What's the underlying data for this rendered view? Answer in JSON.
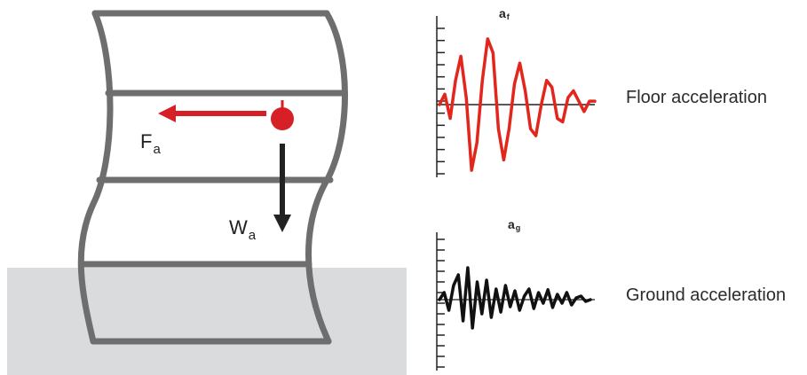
{
  "colors": {
    "frame": "#6e6e6e",
    "ground": "#d9dbdd",
    "accent": "#d71f26",
    "dark": "#222222",
    "background": "#ffffff"
  },
  "building": {
    "force_label": "F",
    "force_label_sub": "a",
    "weight_label": "W",
    "weight_label_sub": "a"
  },
  "floor_plot": {
    "label": "a",
    "label_sub": "f",
    "caption": "Floor acceleration",
    "signal": [
      0,
      0.15,
      -0.2,
      0.35,
      0.7,
      0.1,
      -0.95,
      -0.55,
      0.35,
      0.95,
      0.75,
      -0.35,
      -0.8,
      -0.35,
      0.3,
      0.6,
      0.2,
      -0.35,
      -0.45,
      0,
      0.35,
      0.25,
      -0.2,
      -0.25,
      0.1,
      0.2,
      0.05,
      -0.1,
      0.05,
      0.05
    ]
  },
  "ground_plot": {
    "label": "a",
    "label_sub": "g",
    "caption": "Ground acceleration",
    "signal": [
      0,
      0.2,
      -0.3,
      0.4,
      0.7,
      -0.6,
      0.9,
      -0.8,
      0.5,
      -0.4,
      0.55,
      -0.5,
      0.3,
      -0.35,
      0.4,
      -0.2,
      0.25,
      -0.3,
      0.1,
      0.3,
      -0.25,
      0.2,
      -0.1,
      0.28,
      -0.22,
      0.15,
      -0.1,
      0.2,
      -0.15,
      0.05,
      0.1,
      -0.05,
      0
    ]
  }
}
